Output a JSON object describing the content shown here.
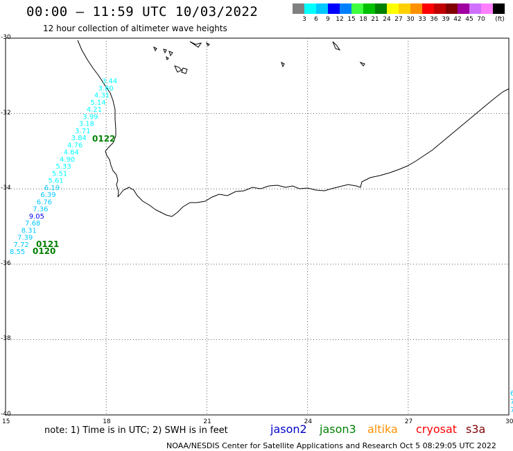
{
  "header": {
    "title": "00:00 – 11:59 UTC 10/03/2022",
    "subtitle": "12 hour collection of altimeter wave heights"
  },
  "scale": {
    "unit": "(ft)",
    "bins": [
      {
        "color": "#808080",
        "label": ""
      },
      {
        "color": "#00ffff",
        "label": "3"
      },
      {
        "color": "#00c8ff",
        "label": "6"
      },
      {
        "color": "#0000ff",
        "label": "9"
      },
      {
        "color": "#0080ff",
        "label": "12"
      },
      {
        "color": "#40ff40",
        "label": "15"
      },
      {
        "color": "#00c000",
        "label": "18"
      },
      {
        "color": "#008000",
        "label": "21"
      },
      {
        "color": "#ffff00",
        "label": "24"
      },
      {
        "color": "#ffd000",
        "label": "27"
      },
      {
        "color": "#ff9000",
        "label": "30"
      },
      {
        "color": "#ff0000",
        "label": "33"
      },
      {
        "color": "#c00000",
        "label": "36"
      },
      {
        "color": "#800000",
        "label": "39"
      },
      {
        "color": "#a000a0",
        "label": "42"
      },
      {
        "color": "#d070ff",
        "label": "45"
      },
      {
        "color": "#ff80ff",
        "label": "70"
      },
      {
        "color": "#000000",
        "label": ""
      }
    ]
  },
  "axes": {
    "lat_labels": [
      "-30",
      "-32",
      "-34",
      "-36",
      "-38",
      "-40"
    ],
    "lat_values": [
      -30,
      -32,
      -34,
      -36,
      -38,
      -40
    ],
    "lon_labels": [
      "15",
      "18",
      "21",
      "24",
      "27",
      "30"
    ],
    "lon_values": [
      15,
      18,
      21,
      24,
      27,
      30
    ],
    "lat_range": [
      -40,
      -30
    ],
    "lon_range": [
      15,
      30
    ],
    "grid": "dotted"
  },
  "wave_heights": [
    {
      "value": "3.44",
      "color": "#00ffff"
    },
    {
      "value": "3.80",
      "color": "#00ffff"
    },
    {
      "value": "4.31",
      "color": "#00ffff"
    },
    {
      "value": "5.14",
      "color": "#00ffff"
    },
    {
      "value": "4.21",
      "color": "#00ffff"
    },
    {
      "value": "3.99",
      "color": "#00ffff"
    },
    {
      "value": "3.18",
      "color": "#00ffff"
    },
    {
      "value": "3.71",
      "color": "#00ffff"
    },
    {
      "value": "3.84",
      "color": "#00ffff"
    },
    {
      "value": "4.76",
      "color": "#00ffff"
    },
    {
      "value": "4.64",
      "color": "#00ffff"
    },
    {
      "value": "4.90",
      "color": "#00ffff"
    },
    {
      "value": "5.33",
      "color": "#00ffff"
    },
    {
      "value": "5.51",
      "color": "#00ffff"
    },
    {
      "value": "5.61",
      "color": "#00ffff"
    },
    {
      "value": "6.19",
      "color": "#00c8ff"
    },
    {
      "value": "6.39",
      "color": "#00c8ff"
    },
    {
      "value": "6.76",
      "color": "#00c8ff"
    },
    {
      "value": "7.36",
      "color": "#00c8ff"
    },
    {
      "value": "9.05",
      "color": "#0000ff"
    },
    {
      "value": "7.68",
      "color": "#00c8ff"
    },
    {
      "value": "8.31",
      "color": "#00c8ff"
    },
    {
      "value": "7.39",
      "color": "#00c8ff"
    },
    {
      "value": "7.72",
      "color": "#00c8ff"
    },
    {
      "value": "8.55",
      "color": "#00c8ff"
    }
  ],
  "pass_labels": [
    {
      "text": "0122",
      "color": "#008000"
    },
    {
      "text": "0121",
      "color": "#008000"
    },
    {
      "text": "0120",
      "color": "#008000"
    }
  ],
  "edge_labels": [
    "6",
    "7",
    "7"
  ],
  "footer": {
    "note": "note:  1) Time is in UTC;  2) SWH is in feet",
    "satellites": [
      {
        "name": "jason2",
        "color": "#0000cc"
      },
      {
        "name": "jason3",
        "color": "#008000"
      },
      {
        "name": "altika",
        "color": "#ff9000"
      },
      {
        "name": "cryosat",
        "color": "#ff0000"
      },
      {
        "name": "s3a",
        "color": "#800000"
      }
    ],
    "credit": "NOAA/NESDIS Center for Satellite Applications and Research     Oct  5 08:29:05 UTC 2022"
  }
}
